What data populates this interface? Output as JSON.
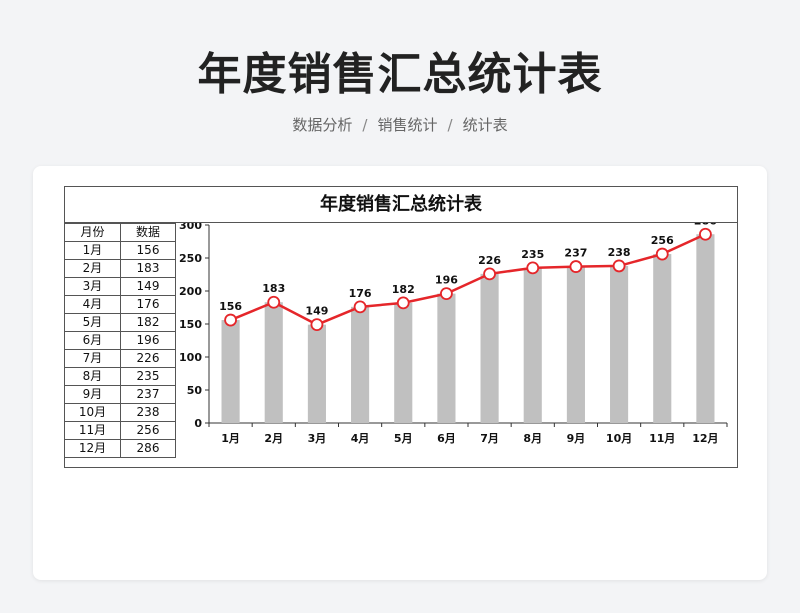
{
  "header": {
    "title": "年度销售汇总统计表",
    "breadcrumb": [
      "数据分析",
      "销售统计",
      "统计表"
    ]
  },
  "sheet": {
    "title": "年度销售汇总统计表",
    "columns": [
      "月份",
      "数据"
    ]
  },
  "colors": {
    "bar": "#c0c0c0",
    "line": "#e5262a",
    "marker_fill": "#ffffff"
  },
  "chart_data": {
    "type": "bar",
    "title": "",
    "categories": [
      "1月",
      "2月",
      "3月",
      "4月",
      "5月",
      "6月",
      "7月",
      "8月",
      "9月",
      "10月",
      "11月",
      "12月"
    ],
    "series": [
      {
        "type": "bar",
        "values": [
          156,
          183,
          149,
          176,
          182,
          196,
          226,
          235,
          237,
          238,
          256,
          286
        ]
      },
      {
        "type": "line",
        "values": [
          156,
          183,
          149,
          176,
          182,
          196,
          226,
          235,
          237,
          238,
          256,
          286
        ]
      }
    ],
    "ylim": [
      0,
      300
    ],
    "yticks": [
      0,
      50,
      100,
      150,
      200,
      250,
      300
    ],
    "data_labels": true,
    "grid": false,
    "legend": "none"
  }
}
